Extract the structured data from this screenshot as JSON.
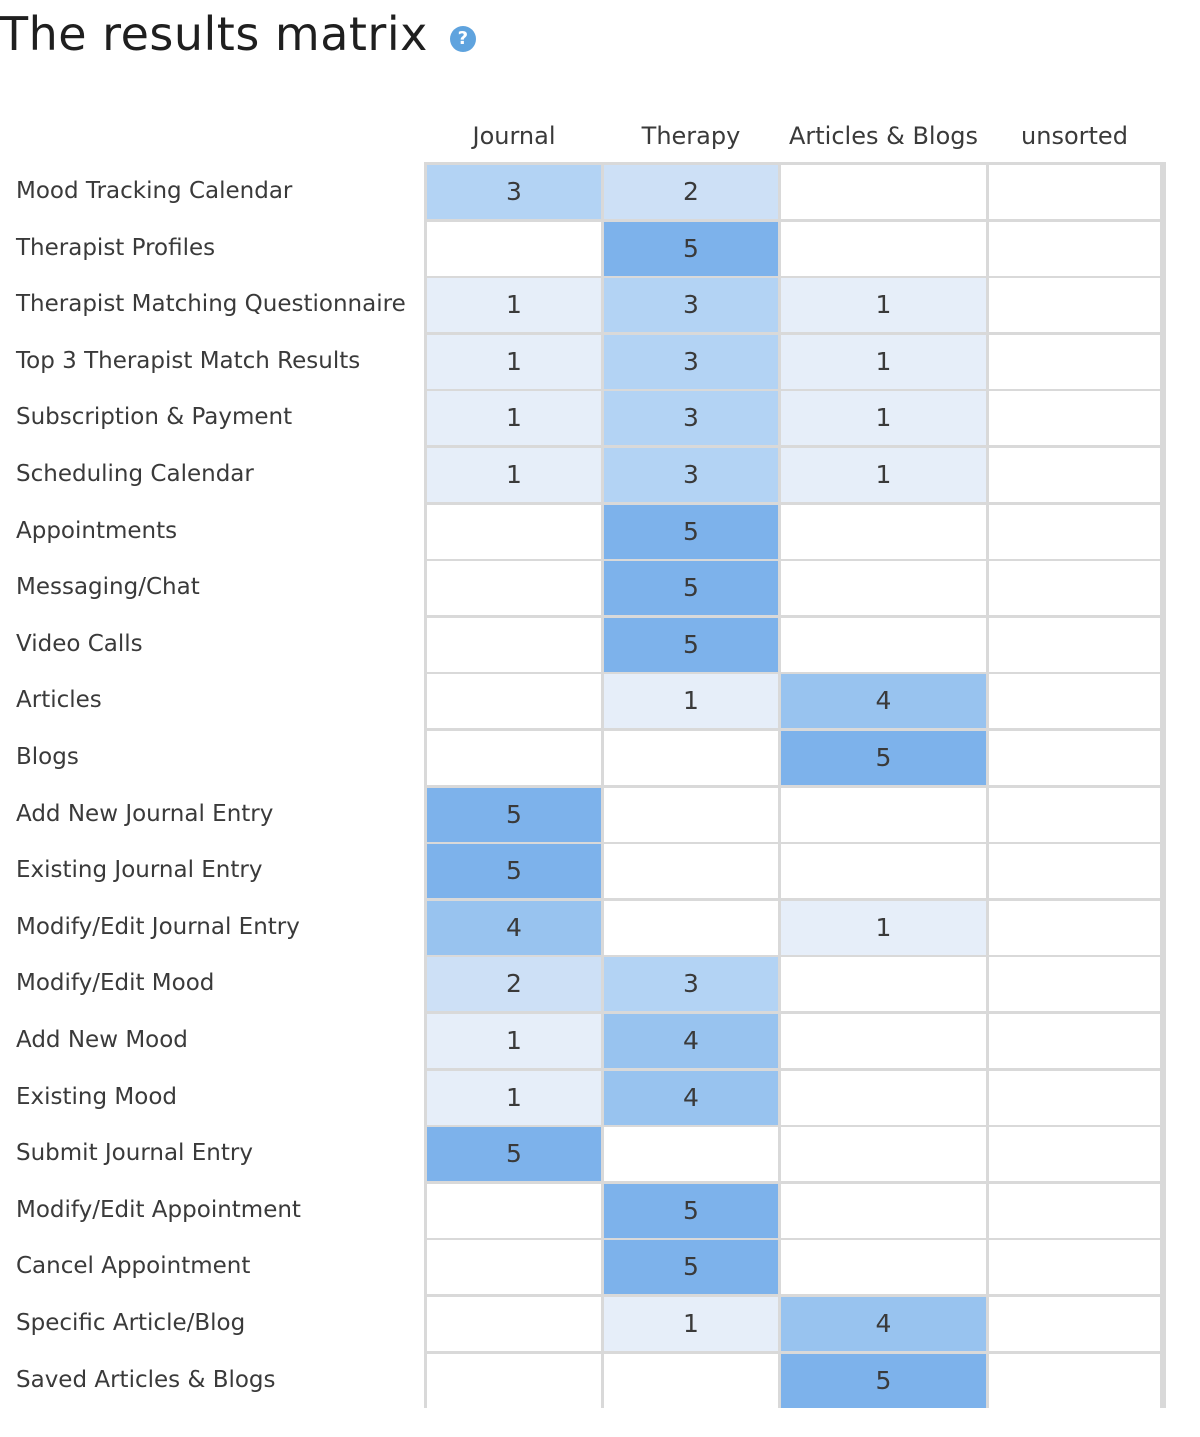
{
  "title": "The results matrix",
  "help_glyph": "?",
  "help_icon": "question-circle-icon",
  "colors": {
    "1": "#e6eef9",
    "2": "#cde0f6",
    "3": "#b3d3f4",
    "4": "#98c3ef",
    "5": "#7db2eb",
    "empty": "#ffffff",
    "grid": "#d9d9d9"
  },
  "chart_data": {
    "type": "heatmap",
    "title": "The results matrix",
    "columns": [
      "Journal",
      "Therapy",
      "Articles & Blogs",
      "unsorted"
    ],
    "rows": [
      "Mood Tracking Calendar",
      "Therapist Profiles",
      "Therapist Matching Questionnaire",
      "Top 3 Therapist Match Results",
      "Subscription & Payment",
      "Scheduling Calendar",
      "Appointments",
      "Messaging/Chat",
      "Video Calls",
      "Articles",
      "Blogs",
      "Add New Journal Entry",
      "Existing Journal Entry",
      "Modify/Edit Journal Entry",
      "Modify/Edit Mood",
      "Add New Mood",
      "Existing Mood",
      "Submit Journal Entry",
      "Modify/Edit Appointment",
      "Cancel Appointment",
      "Specific Article/Blog",
      "Saved Articles & Blogs"
    ],
    "values": [
      [
        3,
        2,
        null,
        null
      ],
      [
        null,
        5,
        null,
        null
      ],
      [
        1,
        3,
        1,
        null
      ],
      [
        1,
        3,
        1,
        null
      ],
      [
        1,
        3,
        1,
        null
      ],
      [
        1,
        3,
        1,
        null
      ],
      [
        null,
        5,
        null,
        null
      ],
      [
        null,
        5,
        null,
        null
      ],
      [
        null,
        5,
        null,
        null
      ],
      [
        null,
        1,
        4,
        null
      ],
      [
        null,
        null,
        5,
        null
      ],
      [
        5,
        null,
        null,
        null
      ],
      [
        5,
        null,
        null,
        null
      ],
      [
        4,
        null,
        1,
        null
      ],
      [
        2,
        3,
        null,
        null
      ],
      [
        1,
        4,
        null,
        null
      ],
      [
        1,
        4,
        null,
        null
      ],
      [
        5,
        null,
        null,
        null
      ],
      [
        null,
        5,
        null,
        null
      ],
      [
        null,
        5,
        null,
        null
      ],
      [
        null,
        1,
        4,
        null
      ],
      [
        null,
        null,
        5,
        null
      ]
    ]
  }
}
